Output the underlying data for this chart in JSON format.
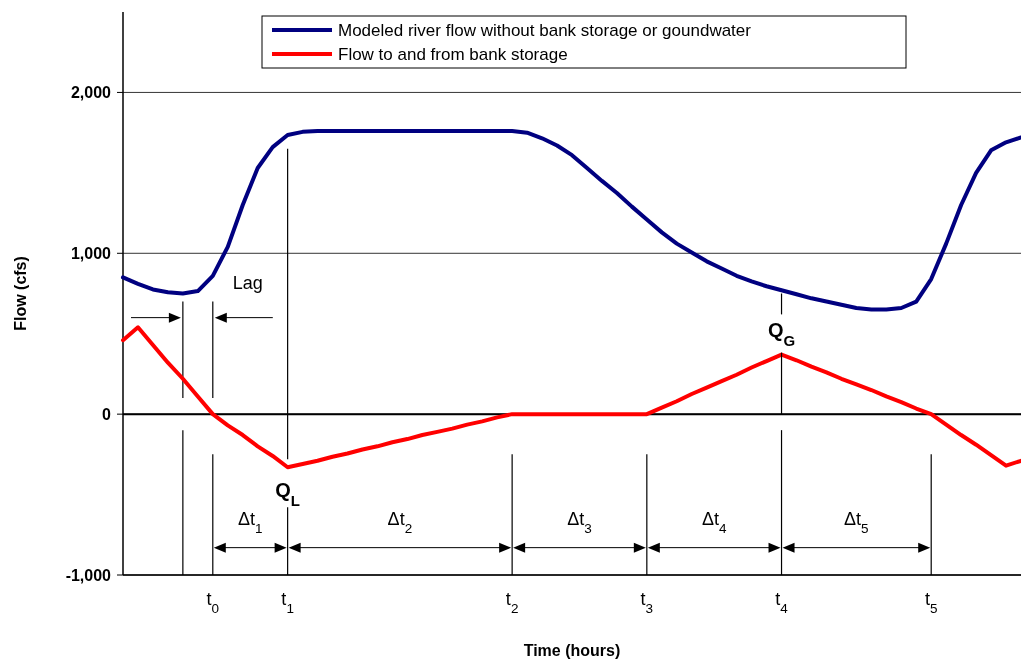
{
  "chart_data": {
    "type": "line",
    "xlabel": "Time (hours)",
    "ylabel": "Flow (cfs)",
    "categories": [
      null,
      null,
      null,
      null,
      null,
      null,
      "t$_{0}$",
      null,
      null,
      null,
      null,
      "t$_{1}$",
      null,
      null,
      null,
      null,
      null,
      null,
      null,
      null,
      null,
      null,
      null,
      null,
      null,
      null,
      "t$_{2}$",
      null,
      null,
      null,
      null,
      null,
      null,
      null,
      null,
      "t$_{3}$",
      null,
      null,
      null,
      null,
      null,
      null,
      null,
      null,
      "t$_{4}$",
      null,
      null,
      null,
      null,
      null,
      null,
      null,
      null,
      null,
      "t$_{5}$",
      null,
      null,
      null,
      null,
      null,
      null
    ],
    "ylim": [
      -1000,
      2500
    ],
    "yticks": [
      {
        "value": -1000,
        "label": "-1,000"
      },
      0,
      {
        "value": 1000,
        "label": "1,000"
      },
      {
        "value": 2000,
        "label": "2,000"
      }
    ],
    "grid": "y",
    "legend": "top",
    "line_style": "solid",
    "marker": "none",
    "series": [
      {
        "name": "Modeled river flow without bank storage or goundwater",
        "color": "#000080",
        "values": [
          850,
          810,
          775,
          758,
          750,
          765,
          860,
          1040,
          1300,
          1530,
          1660,
          1735,
          1755,
          1760,
          1760,
          1760,
          1760,
          1760,
          1760,
          1760,
          1760,
          1760,
          1760,
          1760,
          1760,
          1760,
          1760,
          1750,
          1715,
          1670,
          1610,
          1530,
          1450,
          1375,
          1290,
          1210,
          1130,
          1060,
          1005,
          950,
          905,
          860,
          825,
          795,
          770,
          745,
          720,
          700,
          680,
          660,
          650,
          650,
          660,
          700,
          840,
          1060,
          1300,
          1500,
          1640,
          1690,
          1720
        ]
      },
      {
        "name": "Flow to and from bank storage",
        "color": "#ff0000",
        "values": [
          460,
          540,
          430,
          320,
          220,
          110,
          0,
          -70,
          -130,
          -200,
          -260,
          -330,
          -310,
          -290,
          -265,
          -245,
          -220,
          -200,
          -175,
          -155,
          -130,
          -110,
          -90,
          -65,
          -45,
          -20,
          0,
          0,
          0,
          0,
          0,
          0,
          0,
          0,
          0,
          0,
          40,
          80,
          125,
          165,
          205,
          245,
          290,
          330,
          370,
          335,
          295,
          260,
          220,
          185,
          150,
          110,
          75,
          35,
          0,
          -65,
          -130,
          -190,
          -255,
          -320,
          -290
        ]
      }
    ],
    "ref_lines": [
      {
        "axis": "y",
        "value": 0,
        "color": "#000000"
      }
    ],
    "annotations": [
      "Lag",
      {
        "text": "Q$_{L}$",
        "x": "t$_{1}$",
        "y": -330
      },
      {
        "text": "Q$_{G}$",
        "x": "t$_{4}$",
        "y": 370
      },
      "Δt$_{1}$",
      "Δt$_{2}$",
      "Δt$_{3}$",
      "Δt$_{4}$",
      "Δt$_{5}$"
    ]
  }
}
